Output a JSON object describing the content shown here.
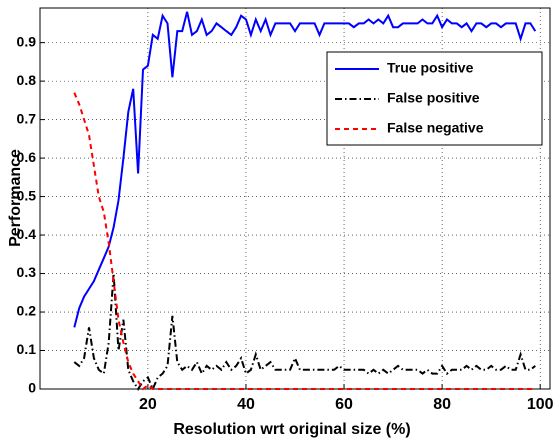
{
  "chart_data": {
    "type": "line",
    "xlabel": "Resolution wrt original size (%)",
    "ylabel": "Performance",
    "x": [
      5,
      6,
      7,
      8,
      9,
      10,
      11,
      12,
      13,
      14,
      15,
      16,
      17,
      18,
      19,
      20,
      21,
      22,
      23,
      24,
      25,
      26,
      27,
      28,
      29,
      30,
      31,
      32,
      33,
      34,
      35,
      36,
      37,
      38,
      39,
      40,
      41,
      42,
      43,
      44,
      45,
      46,
      47,
      48,
      49,
      50,
      51,
      52,
      53,
      54,
      55,
      56,
      57,
      58,
      59,
      60,
      61,
      62,
      63,
      64,
      65,
      66,
      67,
      68,
      69,
      70,
      71,
      72,
      73,
      74,
      75,
      76,
      77,
      78,
      79,
      80,
      81,
      82,
      83,
      84,
      85,
      86,
      87,
      88,
      89,
      90,
      91,
      92,
      93,
      94,
      95,
      96,
      97,
      98,
      99
    ],
    "series": [
      {
        "name": "True positive",
        "color": "#0000ff",
        "linestyle": "solid",
        "values": [
          0.16,
          0.21,
          0.24,
          0.26,
          0.28,
          0.31,
          0.34,
          0.37,
          0.42,
          0.49,
          0.6,
          0.72,
          0.78,
          0.56,
          0.83,
          0.84,
          0.92,
          0.91,
          0.97,
          0.95,
          0.81,
          0.93,
          0.93,
          0.98,
          0.92,
          0.93,
          0.96,
          0.92,
          0.93,
          0.95,
          0.94,
          0.93,
          0.92,
          0.94,
          0.97,
          0.96,
          0.92,
          0.96,
          0.93,
          0.96,
          0.92,
          0.95,
          0.95,
          0.95,
          0.95,
          0.93,
          0.95,
          0.95,
          0.95,
          0.95,
          0.92,
          0.95,
          0.95,
          0.95,
          0.95,
          0.95,
          0.95,
          0.94,
          0.95,
          0.95,
          0.96,
          0.95,
          0.96,
          0.95,
          0.97,
          0.94,
          0.94,
          0.95,
          0.95,
          0.95,
          0.95,
          0.96,
          0.95,
          0.95,
          0.97,
          0.94,
          0.96,
          0.95,
          0.95,
          0.94,
          0.95,
          0.93,
          0.95,
          0.95,
          0.94,
          0.95,
          0.95,
          0.94,
          0.95,
          0.95,
          0.95,
          0.91,
          0.95,
          0.95,
          0.93
        ]
      },
      {
        "name": "False positive",
        "color": "#000000",
        "linestyle": "dashdot",
        "values": [
          0.07,
          0.06,
          0.08,
          0.16,
          0.08,
          0.05,
          0.04,
          0.12,
          0.3,
          0.1,
          0.18,
          0.05,
          0.02,
          0.0,
          0.02,
          0.03,
          0.0,
          0.03,
          0.04,
          0.06,
          0.19,
          0.07,
          0.05,
          0.06,
          0.05,
          0.07,
          0.04,
          0.06,
          0.05,
          0.06,
          0.05,
          0.07,
          0.05,
          0.06,
          0.08,
          0.04,
          0.05,
          0.09,
          0.05,
          0.06,
          0.07,
          0.05,
          0.05,
          0.05,
          0.05,
          0.08,
          0.05,
          0.05,
          0.05,
          0.05,
          0.05,
          0.05,
          0.05,
          0.05,
          0.06,
          0.05,
          0.05,
          0.05,
          0.05,
          0.05,
          0.04,
          0.05,
          0.04,
          0.05,
          0.04,
          0.05,
          0.06,
          0.05,
          0.05,
          0.05,
          0.05,
          0.04,
          0.05,
          0.04,
          0.04,
          0.06,
          0.04,
          0.05,
          0.05,
          0.05,
          0.06,
          0.05,
          0.06,
          0.05,
          0.05,
          0.06,
          0.05,
          0.05,
          0.06,
          0.05,
          0.05,
          0.09,
          0.05,
          0.05,
          0.06
        ]
      },
      {
        "name": "False negative",
        "color": "#ff0000",
        "linestyle": "dashed",
        "values": [
          0.77,
          0.74,
          0.7,
          0.66,
          0.58,
          0.5,
          0.46,
          0.38,
          0.28,
          0.18,
          0.12,
          0.07,
          0.04,
          0.02,
          0.0,
          0.01,
          0.0,
          0.0,
          0.0,
          0.0,
          0.0,
          0.0,
          0.0,
          0.0,
          0.0,
          0.0,
          0.0,
          0.0,
          0.0,
          0.0,
          0.0,
          0.0,
          0.0,
          0.0,
          0.0,
          0.0,
          0.0,
          0.0,
          0.0,
          0.0,
          0.0,
          0.0,
          0.0,
          0.0,
          0.0,
          0.0,
          0.0,
          0.0,
          0.0,
          0.0,
          0.0,
          0.0,
          0.0,
          0.0,
          0.0,
          0.0,
          0.0,
          0.0,
          0.0,
          0.0,
          0.0,
          0.0,
          0.0,
          0.0,
          0.0,
          0.0,
          0.0,
          0.0,
          0.0,
          0.0,
          0.0,
          0.0,
          0.0,
          0.0,
          0.0,
          0.0,
          0.0,
          0.0,
          0.0,
          0.0,
          0.0,
          0.0,
          0.0,
          0.0,
          0.0,
          0.0,
          0.0,
          0.0,
          0.0,
          0.0,
          0.0,
          0.0,
          0.0,
          0.0,
          0.0
        ]
      }
    ],
    "xlim": [
      -2,
      102
    ],
    "xticks": [
      20,
      40,
      60,
      80,
      100
    ],
    "ylim": [
      0,
      0.99
    ],
    "yticks": [
      0,
      0.1,
      0.2,
      0.3,
      0.4,
      0.5,
      0.6,
      0.7,
      0.8,
      0.9
    ],
    "grid": true,
    "legend": "upper right"
  }
}
